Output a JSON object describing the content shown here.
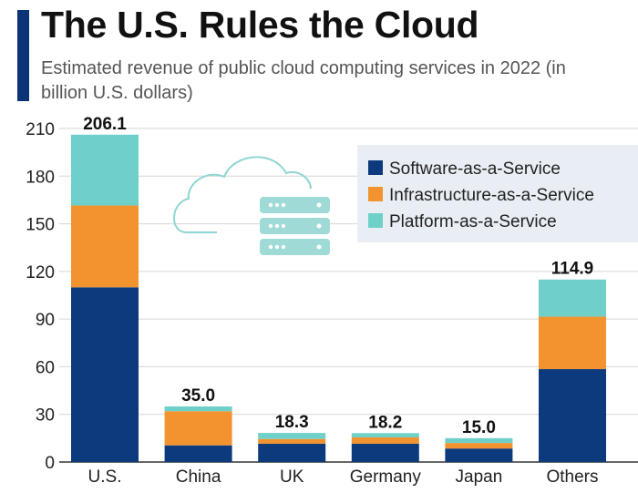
{
  "header": {
    "title": "The U.S. Rules the Cloud",
    "subtitle": "Estimated revenue of public cloud computing services in 2022 (in billion U.S. dollars)"
  },
  "chart_data": {
    "type": "bar",
    "stacked": true,
    "title": "The U.S. Rules the Cloud",
    "subtitle": "Estimated revenue of public cloud computing services in 2022 (in billion U.S. dollars)",
    "xlabel": "",
    "ylabel": "",
    "ylim": [
      0,
      210
    ],
    "yticks": [
      0,
      30,
      60,
      90,
      120,
      150,
      180,
      210
    ],
    "grid": true,
    "legend_position": "top-right",
    "categories": [
      "U.S.",
      "China",
      "UK",
      "Germany",
      "Japan",
      "Others"
    ],
    "totals": [
      "206.1",
      "35.0",
      "18.3",
      "18.2",
      "15.0",
      "114.9"
    ],
    "series": [
      {
        "name": "Software-as-a-Service",
        "color": "#0c3a7d",
        "values": [
          110.0,
          10.5,
          11.5,
          11.5,
          8.5,
          58.5
        ]
      },
      {
        "name": "Infrastructure-as-a-Service",
        "color": "#f29330",
        "values": [
          51.5,
          21.5,
          3.0,
          4.0,
          3.5,
          33.0
        ]
      },
      {
        "name": "Platform-as-a-Service",
        "color": "#6fd0c9",
        "values": [
          44.6,
          3.0,
          3.8,
          2.7,
          3.0,
          23.4
        ]
      }
    ],
    "decoration": "cloud-server-icon"
  }
}
